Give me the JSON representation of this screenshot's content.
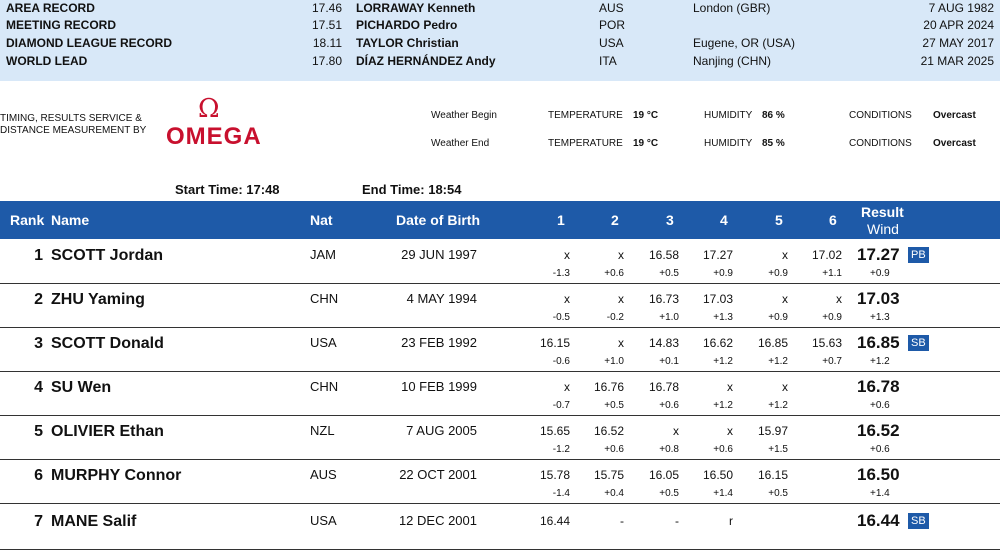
{
  "records": [
    {
      "label": "AREA RECORD",
      "mark": "17.46",
      "name": "LORRAWAY Kenneth",
      "nat": "AUS",
      "venue": "London (GBR)",
      "date": "7 AUG 1982"
    },
    {
      "label": "MEETING RECORD",
      "mark": "17.51",
      "name": "PICHARDO Pedro",
      "nat": "POR",
      "venue": "",
      "date": "20 APR 2024"
    },
    {
      "label": "DIAMOND LEAGUE RECORD",
      "mark": "18.11",
      "name": "TAYLOR Christian",
      "nat": "USA",
      "venue": "Eugene, OR (USA)",
      "date": "27 MAY 2017"
    },
    {
      "label": "WORLD LEAD",
      "mark": "17.80",
      "name": "DÍAZ HERNÁNDEZ Andy",
      "nat": "ITA",
      "venue": "Nanjing (CHN)",
      "date": "21 MAR 2025"
    }
  ],
  "timing_text_1": "TIMING, RESULTS SERVICE &",
  "timing_text_2": "DISTANCE MEASUREMENT BY",
  "sponsor_logo": "OMEGA",
  "weather": {
    "begin": {
      "label": "Weather Begin",
      "temp_label": "TEMPERATURE",
      "temp": "19 °C",
      "hum_label": "HUMIDITY",
      "hum": "86 %",
      "cond_label": "CONDITIONS",
      "cond": "Overcast"
    },
    "end": {
      "label": "Weather End",
      "temp_label": "TEMPERATURE",
      "temp": "19 °C",
      "hum_label": "HUMIDITY",
      "hum": "85 %",
      "cond_label": "CONDITIONS",
      "cond": "Overcast"
    }
  },
  "start_time": "Start Time: 17:48",
  "end_time": "End Time: 18:54",
  "headers": {
    "rank": "Rank",
    "name": "Name",
    "nat": "Nat",
    "dob": "Date of Birth",
    "a1": "1",
    "a2": "2",
    "a3": "3",
    "a4": "4",
    "a5": "5",
    "a6": "6",
    "result": "Result",
    "wind": "Wind"
  },
  "athletes": [
    {
      "rank": "1",
      "name": "SCOTT Jordan",
      "nat": "JAM",
      "dob": "29 JUN 1997",
      "att": [
        "x",
        "x",
        "16.58",
        "17.27",
        "x",
        "17.02"
      ],
      "wind": [
        "-1.3",
        "+0.6",
        "+0.5",
        "+0.9",
        "+0.9",
        "+1.1"
      ],
      "result": "17.27",
      "rwind": "+0.9",
      "badge": "PB"
    },
    {
      "rank": "2",
      "name": "ZHU Yaming",
      "nat": "CHN",
      "dob": "4 MAY 1994",
      "att": [
        "x",
        "x",
        "16.73",
        "17.03",
        "x",
        "x"
      ],
      "wind": [
        "-0.5",
        "-0.2",
        "+1.0",
        "+1.3",
        "+0.9",
        "+0.9"
      ],
      "result": "17.03",
      "rwind": "+1.3",
      "badge": ""
    },
    {
      "rank": "3",
      "name": "SCOTT Donald",
      "nat": "USA",
      "dob": "23 FEB 1992",
      "att": [
        "16.15",
        "x",
        "14.83",
        "16.62",
        "16.85",
        "15.63"
      ],
      "wind": [
        "-0.6",
        "+1.0",
        "+0.1",
        "+1.2",
        "+1.2",
        "+0.7"
      ],
      "result": "16.85",
      "rwind": "+1.2",
      "badge": "SB"
    },
    {
      "rank": "4",
      "name": "SU Wen",
      "nat": "CHN",
      "dob": "10 FEB 1999",
      "att": [
        "x",
        "16.76",
        "16.78",
        "x",
        "x",
        ""
      ],
      "wind": [
        "-0.7",
        "+0.5",
        "+0.6",
        "+1.2",
        "+1.2",
        ""
      ],
      "result": "16.78",
      "rwind": "+0.6",
      "badge": ""
    },
    {
      "rank": "5",
      "name": "OLIVIER Ethan",
      "nat": "NZL",
      "dob": "7 AUG 2005",
      "att": [
        "15.65",
        "16.52",
        "x",
        "x",
        "15.97",
        ""
      ],
      "wind": [
        "-1.2",
        "+0.6",
        "+0.8",
        "+0.6",
        "+1.5",
        ""
      ],
      "result": "16.52",
      "rwind": "+0.6",
      "badge": ""
    },
    {
      "rank": "6",
      "name": "MURPHY Connor",
      "nat": "AUS",
      "dob": "22 OCT 2001",
      "att": [
        "15.78",
        "15.75",
        "16.05",
        "16.50",
        "16.15",
        ""
      ],
      "wind": [
        "-1.4",
        "+0.4",
        "+0.5",
        "+1.4",
        "+0.5",
        ""
      ],
      "result": "16.50",
      "rwind": "+1.4",
      "badge": ""
    },
    {
      "rank": "7",
      "name": "MANE Salif",
      "nat": "USA",
      "dob": "12 DEC 2001",
      "att": [
        "16.44",
        "-",
        "-",
        "r",
        "",
        ""
      ],
      "wind": [
        "",
        "",
        "",
        "",
        "",
        ""
      ],
      "result": "16.44",
      "rwind": "",
      "badge": "SB"
    }
  ]
}
